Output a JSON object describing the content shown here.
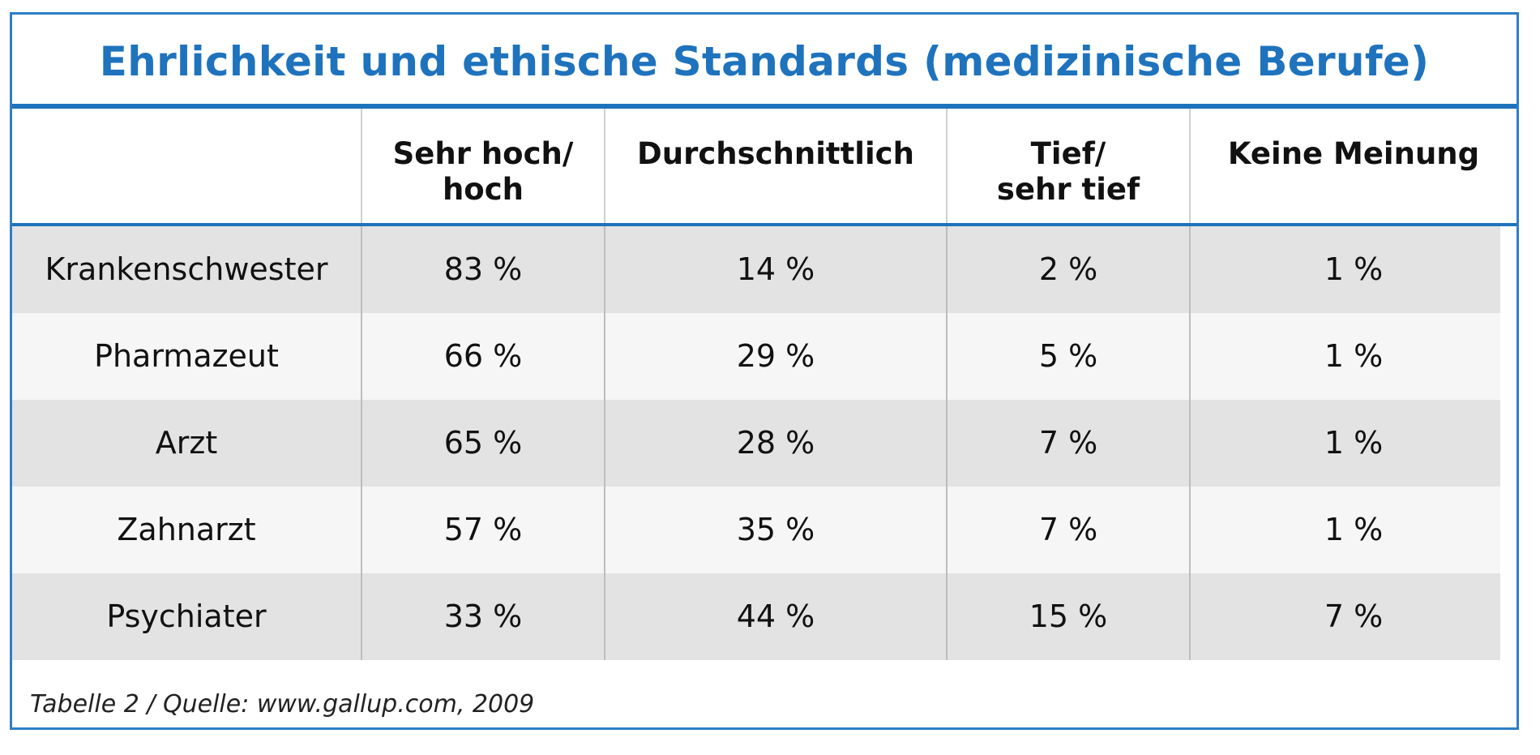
{
  "chart_data": {
    "type": "table",
    "title": "Ehrlichkeit und ethische Standards (medizinische Berufe)",
    "columns": [
      "",
      "Sehr hoch/\nhoch",
      "Durchschnittlich",
      "Tief/\nsehr tief",
      "Keine Meinung"
    ],
    "rows": [
      {
        "label": "Krankenschwester",
        "values": [
          "83 %",
          "14 %",
          "2 %",
          "1 %"
        ]
      },
      {
        "label": "Pharmazeut",
        "values": [
          "66 %",
          "29 %",
          "5 %",
          "1 %"
        ]
      },
      {
        "label": "Arzt",
        "values": [
          "65 %",
          "28 %",
          "7 %",
          "1 %"
        ]
      },
      {
        "label": "Zahnarzt",
        "values": [
          "57 %",
          "35 %",
          "7 %",
          "1 %"
        ]
      },
      {
        "label": "Psychiater",
        "values": [
          "33 %",
          "44 %",
          "15 %",
          "7 %"
        ]
      }
    ],
    "source": "Tabelle 2 / Quelle: www.gallup.com, 2009"
  },
  "colors": {
    "accent": "#1f73bd",
    "row_shade": "#e3e3e3",
    "row_light": "#f6f6f6"
  }
}
